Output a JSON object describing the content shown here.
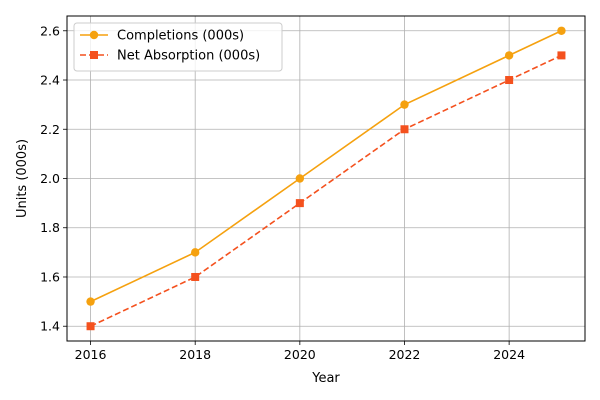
{
  "chart_data": {
    "type": "line",
    "title": "",
    "xlabel": "Year",
    "ylabel": "Units (000s)",
    "x": [
      2016,
      2018,
      2020,
      2022,
      2024,
      2025
    ],
    "xticks": [
      2016,
      2018,
      2020,
      2022,
      2024
    ],
    "xlim": [
      2015.55,
      2025.45
    ],
    "yticks": [
      1.4,
      1.6,
      1.8,
      2.0,
      2.2,
      2.4,
      2.6
    ],
    "ylim": [
      1.34,
      2.66
    ],
    "grid": true,
    "legend_position": "top-left",
    "series": [
      {
        "name": "Completions (000s)",
        "values": [
          1.5,
          1.7,
          2.0,
          2.3,
          2.5,
          2.6
        ],
        "color": "#f5a10f",
        "line_style": "solid",
        "marker": "circle"
      },
      {
        "name": "Net Absorption (000s)",
        "values": [
          1.4,
          1.6,
          1.9,
          2.2,
          2.4,
          2.5
        ],
        "color": "#f4511e",
        "line_style": "dashed",
        "marker": "square"
      }
    ]
  }
}
